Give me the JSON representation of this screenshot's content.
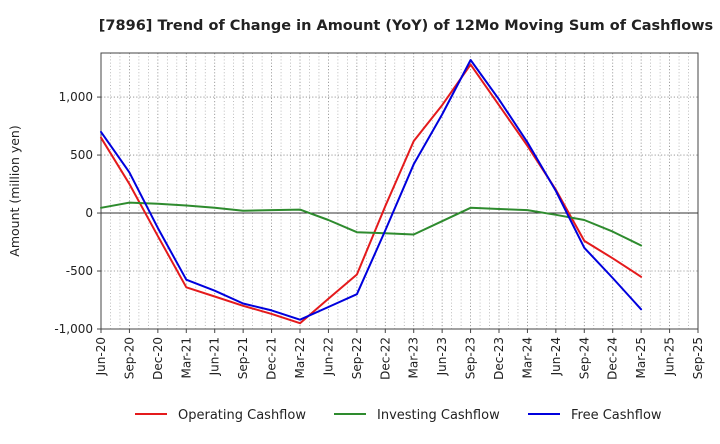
{
  "chart_data": {
    "type": "line",
    "title": "[7896]  Trend of Change in Amount (YoY) of 12Mo Moving Sum of Cashflows",
    "xlabel": "",
    "ylabel": "Amount (million yen)",
    "ylim": [
      -1000,
      1380
    ],
    "yticks": [
      -1000,
      -500,
      0,
      500,
      1000
    ],
    "ytick_labels": [
      "-1,000",
      "-500",
      "0",
      "500",
      "1,000"
    ],
    "grid": true,
    "legend_position": "bottom",
    "categories": [
      "Jun-20",
      "Sep-20",
      "Dec-20",
      "Mar-21",
      "Jun-21",
      "Sep-21",
      "Dec-21",
      "Mar-22",
      "Jun-22",
      "Sep-22",
      "Dec-22",
      "Mar-23",
      "Jun-23",
      "Sep-23",
      "Dec-23",
      "Mar-24",
      "Jun-24",
      "Sep-24",
      "Dec-24",
      "Mar-25",
      "Jun-25",
      "Sep-25"
    ],
    "series": [
      {
        "name": "Operating Cashflow",
        "color": "#e41a1c",
        "values": [
          650,
          250,
          -200,
          -640,
          -720,
          -800,
          -870,
          -950,
          -740,
          -530,
          60,
          620,
          930,
          1280,
          930,
          580,
          200,
          -240,
          -390,
          -550,
          null,
          null
        ]
      },
      {
        "name": "Investing Cashflow",
        "color": "#2e8b2e",
        "values": [
          45,
          90,
          80,
          65,
          45,
          20,
          25,
          30,
          -60,
          -165,
          -175,
          -185,
          -70,
          45,
          35,
          25,
          -15,
          -60,
          -160,
          -280,
          null,
          null
        ]
      },
      {
        "name": "Free Cashflow",
        "color": "#0000dd",
        "values": [
          700,
          350,
          -130,
          -575,
          -670,
          -780,
          -840,
          -920,
          -810,
          -700,
          -150,
          420,
          850,
          1320,
          980,
          610,
          190,
          -300,
          -560,
          -830,
          null,
          null
        ]
      }
    ]
  }
}
